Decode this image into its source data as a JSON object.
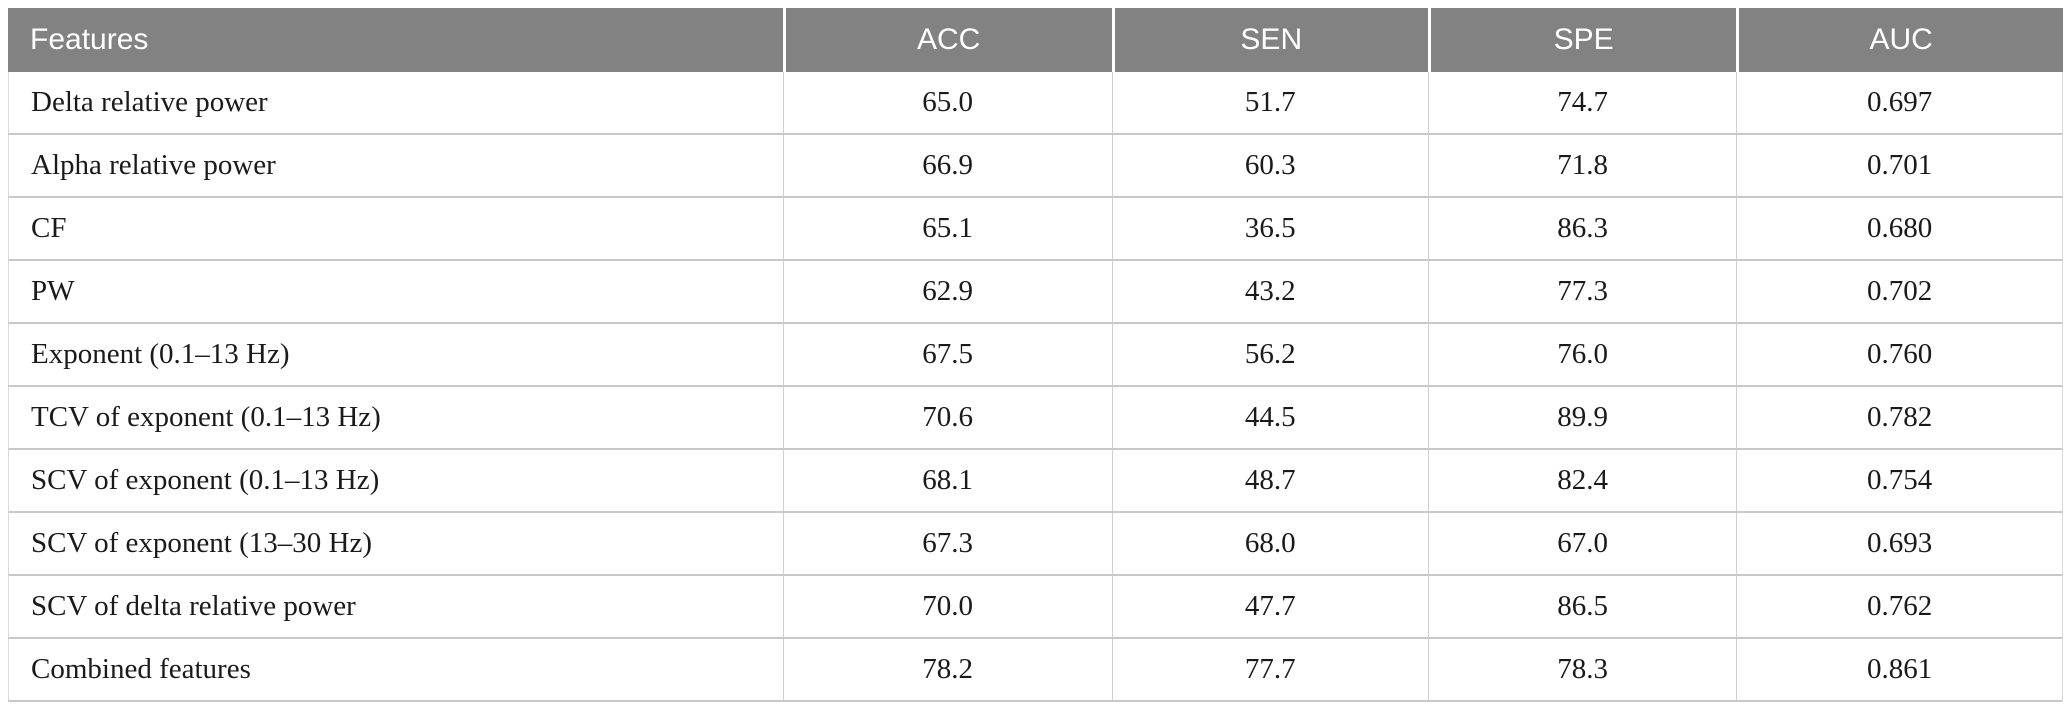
{
  "chart_data": {
    "type": "table",
    "columns": [
      "Features",
      "ACC",
      "SEN",
      "SPE",
      "AUC"
    ],
    "rows": [
      [
        "Delta relative power",
        "65.0",
        "51.7",
        "74.7",
        "0.697"
      ],
      [
        "Alpha relative power",
        "66.9",
        "60.3",
        "71.8",
        "0.701"
      ],
      [
        "CF",
        "65.1",
        "36.5",
        "86.3",
        "0.680"
      ],
      [
        "PW",
        "62.9",
        "43.2",
        "77.3",
        "0.702"
      ],
      [
        "Exponent (0.1–13 Hz)",
        "67.5",
        "56.2",
        "76.0",
        "0.760"
      ],
      [
        "TCV of exponent (0.1–13 Hz)",
        "70.6",
        "44.5",
        "89.9",
        "0.782"
      ],
      [
        "SCV of exponent (0.1–13 Hz)",
        "68.1",
        "48.7",
        "82.4",
        "0.754"
      ],
      [
        "SCV of exponent (13–30 Hz)",
        "67.3",
        "68.0",
        "67.0",
        "0.693"
      ],
      [
        "SCV of delta relative power",
        "70.0",
        "47.7",
        "86.5",
        "0.762"
      ],
      [
        "Combined features",
        "78.2",
        "77.7",
        "78.3",
        "0.861"
      ]
    ]
  },
  "colors": {
    "header_bg": "#828282",
    "header_text": "#ffffff",
    "row_rule": "#c8c8c8",
    "body_text": "#1a1a1a"
  }
}
